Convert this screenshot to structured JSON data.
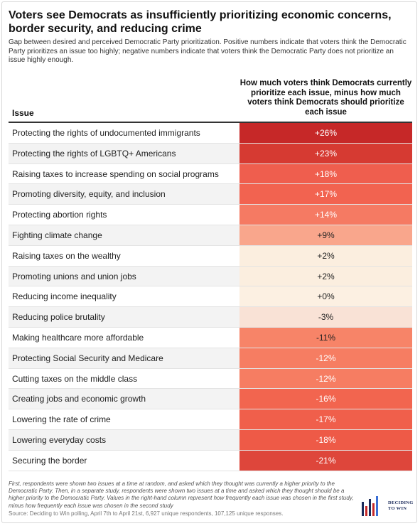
{
  "title": "Voters see Democrats as insufficiently prioritizing economic concerns, border security, and reducing crime",
  "subtitle": "Gap between desired and perceived Democratic Party prioritization. Positive numbers indicate that voters think the Democratic Party prioritizes an issue too highly; negative numbers indicate that voters think the Democratic Party does not prioritize an issue highly enough.",
  "chart_data": {
    "type": "table",
    "columns": [
      "Issue",
      "How much voters think Democrats currently prioritize each issue, minus how much voters think Democrats should prioritize each issue"
    ],
    "rows": [
      {
        "issue": "Protecting the rights of undocumented immigrants",
        "value": 26,
        "label": "+26%",
        "color": "#c62828",
        "text_color": "#ffffff"
      },
      {
        "issue": "Protecting the rights of LGBTQ+ Americans",
        "value": 23,
        "label": "+23%",
        "color": "#d63a32",
        "text_color": "#ffffff"
      },
      {
        "issue": "Raising taxes to increase spending on social programs",
        "value": 18,
        "label": "+18%",
        "color": "#ef5e4e",
        "text_color": "#ffffff"
      },
      {
        "issue": "Promoting diversity, equity, and inclusion",
        "value": 17,
        "label": "+17%",
        "color": "#f26350",
        "text_color": "#ffffff"
      },
      {
        "issue": "Protecting abortion rights",
        "value": 14,
        "label": "+14%",
        "color": "#f57a63",
        "text_color": "#ffffff"
      },
      {
        "issue": "Fighting climate change",
        "value": 9,
        "label": "+9%",
        "color": "#f9a68c",
        "text_color": "#222222"
      },
      {
        "issue": "Raising taxes on the wealthy",
        "value": 2,
        "label": "+2%",
        "color": "#fbeedf",
        "text_color": "#222222"
      },
      {
        "issue": "Promoting unions and union jobs",
        "value": 2,
        "label": "+2%",
        "color": "#fbeedf",
        "text_color": "#222222"
      },
      {
        "issue": "Reducing income inequality",
        "value": 0,
        "label": "+0%",
        "color": "#fcf0e2",
        "text_color": "#222222"
      },
      {
        "issue": "Reducing police brutality",
        "value": -3,
        "label": "-3%",
        "color": "#f9e2d6",
        "text_color": "#222222"
      },
      {
        "issue": "Making healthcare more affordable",
        "value": -11,
        "label": "-11%",
        "color": "#f78468",
        "text_color": "#222222"
      },
      {
        "issue": "Protecting Social Security and Medicare",
        "value": -12,
        "label": "-12%",
        "color": "#f67d62",
        "text_color": "#ffffff"
      },
      {
        "issue": "Cutting taxes on the middle class",
        "value": -12,
        "label": "-12%",
        "color": "#f67d62",
        "text_color": "#ffffff"
      },
      {
        "issue": "Creating jobs and economic growth",
        "value": -16,
        "label": "-16%",
        "color": "#f2654f",
        "text_color": "#ffffff"
      },
      {
        "issue": "Lowering the rate of crime",
        "value": -17,
        "label": "-17%",
        "color": "#f05f4b",
        "text_color": "#ffffff"
      },
      {
        "issue": "Lowering everyday costs",
        "value": -18,
        "label": "-18%",
        "color": "#ee5a47",
        "text_color": "#ffffff"
      },
      {
        "issue": "Securing the border",
        "value": -21,
        "label": "-21%",
        "color": "#de463b",
        "text_color": "#ffffff"
      }
    ]
  },
  "headers": {
    "issue": "Issue",
    "value": "How much voters think Democrats currently prioritize each issue, minus how much voters think Democrats should prioritize each issue"
  },
  "footnote": "First, respondents were shown two issues at a time at random, and asked which they thought was currently a higher priority to the Democratic Party. Then, in a separate study, respondents were shown two issues at a time and asked which they thought should be a higher priority to the Democratic Party. Values in the right-hand column represent how frequently each issue was chosen in the first study, minus how frequently each issue was chosen in the second study",
  "source": "Source: Deciding to Win polling, April 7th to April 21st, 6,927 unique respondents, 107,125 unique responses.",
  "logo": {
    "line1": "DECIDING",
    "line2": "TO WIN",
    "bar_colors": [
      "#1a2a5a",
      "#c62828",
      "#1a2a5a",
      "#c62828",
      "#3b6fd6"
    ]
  }
}
